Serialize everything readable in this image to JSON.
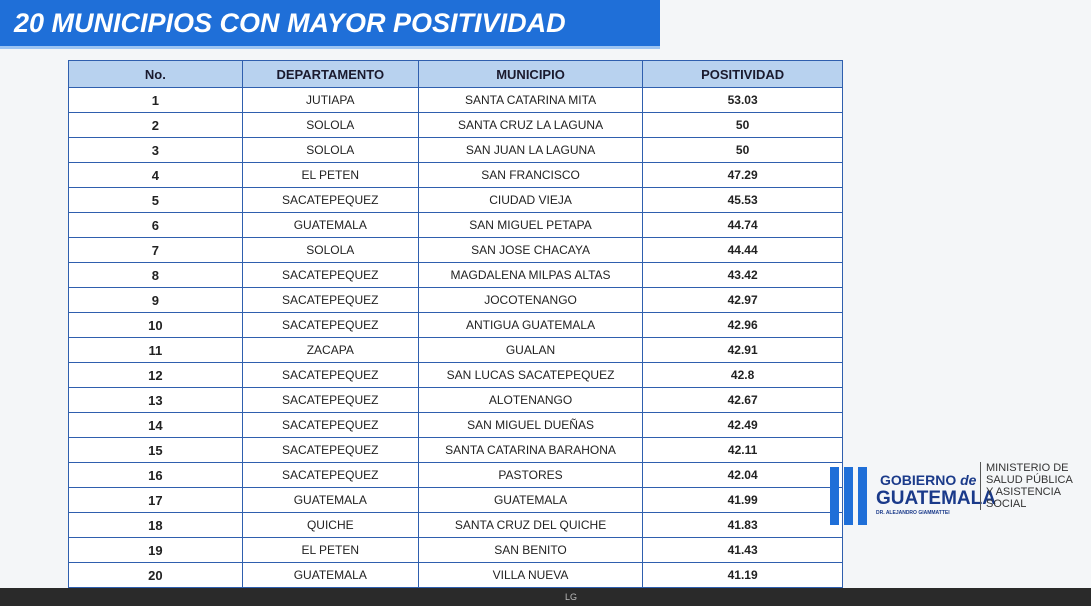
{
  "header": {
    "title": "20 MUNICIPIOS CON MAYOR POSITIVIDAD"
  },
  "table": {
    "columns": [
      "No.",
      "DEPARTAMENTO",
      "MUNICIPIO",
      "POSITIVIDAD"
    ],
    "rows": [
      [
        1,
        "JUTIAPA",
        "SANTA CATARINA MITA",
        53.03
      ],
      [
        2,
        "SOLOLA",
        "SANTA CRUZ LA LAGUNA",
        50
      ],
      [
        3,
        "SOLOLA",
        "SAN JUAN LA LAGUNA",
        50
      ],
      [
        4,
        "EL PETEN",
        "SAN FRANCISCO",
        47.29
      ],
      [
        5,
        "SACATEPEQUEZ",
        "CIUDAD VIEJA",
        45.53
      ],
      [
        6,
        "GUATEMALA",
        "SAN MIGUEL PETAPA",
        44.74
      ],
      [
        7,
        "SOLOLA",
        "SAN JOSE CHACAYA",
        44.44
      ],
      [
        8,
        "SACATEPEQUEZ",
        "MAGDALENA MILPAS ALTAS",
        43.42
      ],
      [
        9,
        "SACATEPEQUEZ",
        "JOCOTENANGO",
        42.97
      ],
      [
        10,
        "SACATEPEQUEZ",
        "ANTIGUA GUATEMALA",
        42.96
      ],
      [
        11,
        "ZACAPA",
        "GUALAN",
        42.91
      ],
      [
        12,
        "SACATEPEQUEZ",
        "SAN LUCAS SACATEPEQUEZ",
        42.8
      ],
      [
        13,
        "SACATEPEQUEZ",
        "ALOTENANGO",
        42.67
      ],
      [
        14,
        "SACATEPEQUEZ",
        "SAN MIGUEL DUEÑAS",
        42.49
      ],
      [
        15,
        "SACATEPEQUEZ",
        "SANTA CATARINA BARAHONA",
        42.11
      ],
      [
        16,
        "SACATEPEQUEZ",
        "PASTORES",
        42.04
      ],
      [
        17,
        "GUATEMALA",
        "GUATEMALA",
        41.99
      ],
      [
        18,
        "QUICHE",
        "SANTA CRUZ DEL QUICHE",
        41.83
      ],
      [
        19,
        "EL PETEN",
        "SAN BENITO",
        41.43
      ],
      [
        20,
        "GUATEMALA",
        "VILLA NUEVA",
        41.19
      ]
    ]
  },
  "logo": {
    "gobierno": "GOBIERNO",
    "de": "de",
    "guatemala": "GUATEMALA",
    "president": "DR. ALEJANDRO GIAMMATTEI",
    "ministry": [
      "MINISTERIO DE",
      "SALUD PÚBLICA",
      "Y ASISTENCIA",
      "SOCIAL"
    ]
  },
  "tv": {
    "brand": "LG"
  }
}
